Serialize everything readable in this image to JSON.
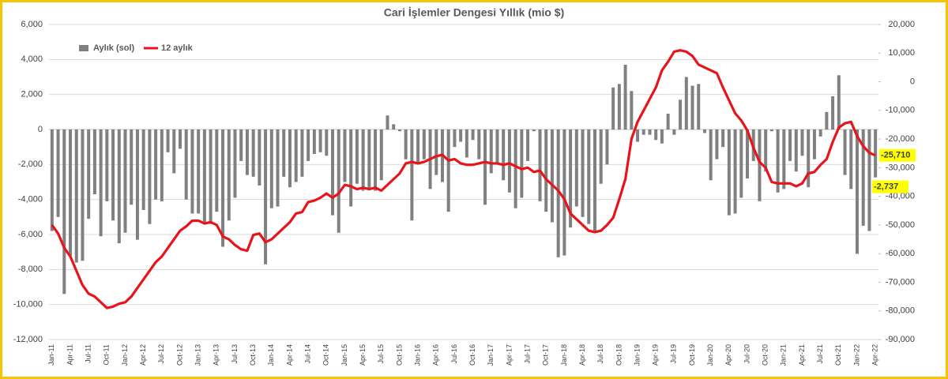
{
  "chart_data": {
    "type": "bar",
    "title": "Cari İşlemler Dengesi Yıllık (mio $)",
    "grid": true,
    "legend": "top-left",
    "categories": [
      "Jan-11",
      null,
      null,
      "Apr-11",
      null,
      null,
      "Jul-11",
      null,
      null,
      "Oct-11",
      null,
      null,
      "Jan-12",
      null,
      null,
      "Apr-12",
      null,
      null,
      "Jul-12",
      null,
      null,
      "Oct-12",
      null,
      null,
      "Jan-13",
      null,
      null,
      "Apr-13",
      null,
      null,
      "Jul-13",
      null,
      null,
      "Oct-13",
      null,
      null,
      "Jan-14",
      null,
      null,
      "Apr-14",
      null,
      null,
      "Jul-14",
      null,
      null,
      "Oct-14",
      null,
      null,
      "Jan-15",
      null,
      null,
      "Apr-15",
      null,
      null,
      "Jul-15",
      null,
      null,
      "Oct-15",
      null,
      null,
      "Jan-16",
      null,
      null,
      "Apr-16",
      null,
      null,
      "Jul-16",
      null,
      null,
      "Oct-16",
      null,
      null,
      "Jan-17",
      null,
      null,
      "Apr-17",
      null,
      null,
      "Jul-17",
      null,
      null,
      "Oct-17",
      null,
      null,
      "Jan-18",
      null,
      null,
      "Apr-18",
      null,
      null,
      "Jul-18",
      null,
      null,
      "Oct-18",
      null,
      null,
      "Jan-19",
      null,
      null,
      "Apr-19",
      null,
      null,
      "Jul-19",
      null,
      null,
      "Oct-19",
      null,
      null,
      "Jan-20",
      null,
      null,
      "Apr-20",
      null,
      null,
      "Jul-20",
      null,
      null,
      "Oct-20",
      null,
      null,
      "Jan-21",
      null,
      null,
      "Apr-21",
      null,
      null,
      "Jul-21",
      null,
      null,
      "Oct-21",
      null,
      null,
      "Jan-22",
      null,
      null,
      "Apr-22"
    ],
    "ylim": [
      -12000,
      6000
    ],
    "yticks": [
      {
        "value": -12000,
        "label": "-12,000"
      },
      {
        "value": -10000,
        "label": "-10,000"
      },
      {
        "value": -8000,
        "label": "-8,000"
      },
      {
        "value": -6000,
        "label": "-6,000"
      },
      {
        "value": -4000,
        "label": "-4,000"
      },
      {
        "value": -2000,
        "label": "-2,000"
      },
      0,
      {
        "value": 2000,
        "label": "2,000"
      },
      {
        "value": 4000,
        "label": "4,000"
      },
      {
        "value": 6000,
        "label": "6,000"
      }
    ],
    "y2lim": [
      -90000,
      20000
    ],
    "y2ticks": [
      {
        "value": -90000,
        "label": "-90,000"
      },
      {
        "value": -80000,
        "label": "-80,000"
      },
      {
        "value": -70000,
        "label": "-70,000"
      },
      {
        "value": -60000,
        "label": "-60,000"
      },
      {
        "value": -50000,
        "label": "-50,000"
      },
      {
        "value": -40000,
        "label": "-40,000"
      },
      {
        "value": -30000,
        "label": "-30,000"
      },
      {
        "value": -20000,
        "label": "-20,000"
      },
      {
        "value": -10000,
        "label": "-10,000"
      },
      0,
      {
        "value": 10000,
        "label": "10,000"
      },
      {
        "value": 20000,
        "label": "20,000"
      }
    ],
    "series": [
      {
        "name": "Aylık (sol)",
        "type": "bar",
        "color": "#808080",
        "values": [
          -5800,
          -5000,
          -9400,
          -7200,
          -7600,
          -7500,
          -5100,
          -3700,
          -6100,
          -4100,
          -5200,
          -6500,
          -5900,
          -4300,
          -6300,
          -4600,
          -5400,
          -4000,
          -4100,
          -1300,
          -2500,
          -1100,
          -4000,
          -4800,
          -4800,
          -5300,
          -5400,
          -4700,
          -6700,
          -5200,
          -3900,
          -1800,
          -2600,
          -2700,
          -3200,
          -7700,
          -4500,
          -4400,
          -2700,
          -3300,
          -3000,
          -2700,
          -1800,
          -1400,
          -1300,
          -1500,
          -4900,
          -5900,
          -3000,
          -4400,
          -3100,
          -3500,
          -3400,
          -3500,
          -2900,
          800,
          300,
          -100,
          -1700,
          -5200,
          -1900,
          -1700,
          -3400,
          -2600,
          -3000,
          -4700,
          -1000,
          -700,
          -1600,
          -600,
          -1700,
          -4300,
          -2500,
          -2000,
          -2900,
          -3600,
          -4500,
          -3900,
          -1800,
          -100,
          -4100,
          -4700,
          -5300,
          -7300,
          -7200,
          -5600,
          -4400,
          -5000,
          -5400,
          -5800,
          -3100,
          -2000,
          2400,
          2600,
          3700,
          2200,
          -700,
          -300,
          -300,
          -600,
          -800,
          900,
          -300,
          1700,
          3000,
          2500,
          2600,
          -200,
          -2900,
          -1700,
          -1000,
          -4900,
          -4800,
          -3900,
          -2800,
          -1800,
          -4100,
          -2400,
          -100,
          -3600,
          -3400,
          -1800,
          -2400,
          -1500,
          -3300,
          -1700,
          -400,
          1000,
          1900,
          3100,
          -2600,
          -3400,
          -7100,
          -5500,
          -5800,
          -2737
        ],
        "value_labels": [
          null,
          null,
          null,
          null,
          null,
          null,
          null,
          null,
          null,
          null,
          null,
          null,
          null,
          null,
          null,
          null,
          null,
          null,
          null,
          null,
          null,
          null,
          null,
          null,
          null,
          null,
          null,
          null,
          null,
          null,
          null,
          null,
          null,
          null,
          null,
          null,
          null,
          null,
          null,
          null,
          null,
          null,
          null,
          null,
          null,
          null,
          null,
          null,
          null,
          null,
          null,
          null,
          null,
          null,
          null,
          null,
          null,
          null,
          null,
          null,
          null,
          null,
          null,
          null,
          null,
          null,
          null,
          null,
          null,
          null,
          null,
          null,
          null,
          null,
          null,
          null,
          null,
          null,
          null,
          null,
          null,
          null,
          null,
          null,
          null,
          null,
          null,
          null,
          null,
          null,
          null,
          null,
          null,
          null,
          null,
          null,
          null,
          null,
          null,
          null,
          null,
          null,
          null,
          null,
          null,
          null,
          null,
          null,
          null,
          null,
          null,
          null,
          null,
          null,
          null,
          null,
          null,
          null,
          null,
          null,
          null,
          null,
          null,
          null,
          null,
          null,
          null,
          null,
          null,
          null,
          null,
          null,
          null,
          null,
          null,
          "-2,737"
        ]
      },
      {
        "name": "12 aylık",
        "type": "line",
        "axis": "y2",
        "color": "#e8141b",
        "values": [
          -50000,
          -53000,
          -58000,
          -61000,
          -66000,
          -71000,
          -74000,
          -75000,
          -77000,
          -79000,
          -78500,
          -77500,
          -77000,
          -75000,
          -72000,
          -69000,
          -66000,
          -63000,
          -61000,
          -58000,
          -55000,
          -52000,
          -50500,
          -48500,
          -48500,
          -49500,
          -49000,
          -50000,
          -54000,
          -55000,
          -57000,
          -58500,
          -59000,
          -53500,
          -53000,
          -56000,
          -55000,
          -53000,
          -51000,
          -49000,
          -46000,
          -45500,
          -42000,
          -41500,
          -40500,
          -39000,
          -40500,
          -39000,
          -36000,
          -36500,
          -37500,
          -37000,
          -37500,
          -37000,
          -38000,
          -36000,
          -34000,
          -32000,
          -28500,
          -28000,
          -28500,
          -28000,
          -27000,
          -26000,
          -25500,
          -27500,
          -27000,
          -28500,
          -29000,
          -29000,
          -28500,
          -28000,
          -28500,
          -28500,
          -29000,
          -28500,
          -29500,
          -30500,
          -30000,
          -31500,
          -31000,
          -34000,
          -36000,
          -38000,
          -41000,
          -46000,
          -48000,
          -50000,
          -52000,
          -52500,
          -52000,
          -50000,
          -47500,
          -41000,
          -34000,
          -20000,
          -14000,
          -10000,
          -6000,
          -2000,
          4000,
          7000,
          10500,
          11000,
          10500,
          9000,
          6000,
          5000,
          4000,
          3000,
          -2000,
          -6500,
          -11000,
          -13500,
          -17000,
          -23000,
          -28000,
          -30000,
          -35000,
          -35500,
          -35500,
          -35500,
          -36500,
          -35500,
          -32000,
          -31500,
          -29000,
          -27000,
          -21000,
          -16000,
          -14500,
          -14000,
          -19000,
          -22500,
          -24800,
          -25710
        ],
        "value_labels": [
          null,
          null,
          null,
          null,
          null,
          null,
          null,
          null,
          null,
          null,
          null,
          null,
          null,
          null,
          null,
          null,
          null,
          null,
          null,
          null,
          null,
          null,
          null,
          null,
          null,
          null,
          null,
          null,
          null,
          null,
          null,
          null,
          null,
          null,
          null,
          null,
          null,
          null,
          null,
          null,
          null,
          null,
          null,
          null,
          null,
          null,
          null,
          null,
          null,
          null,
          null,
          null,
          null,
          null,
          null,
          null,
          null,
          null,
          null,
          null,
          null,
          null,
          null,
          null,
          null,
          null,
          null,
          null,
          null,
          null,
          null,
          null,
          null,
          null,
          null,
          null,
          null,
          null,
          null,
          null,
          null,
          null,
          null,
          null,
          null,
          null,
          null,
          null,
          null,
          null,
          null,
          null,
          null,
          null,
          null,
          null,
          null,
          null,
          null,
          null,
          null,
          null,
          null,
          null,
          null,
          null,
          null,
          null,
          null,
          null,
          null,
          null,
          null,
          null,
          null,
          null,
          null,
          null,
          null,
          null,
          null,
          null,
          null,
          null,
          null,
          null,
          null,
          null,
          null,
          null,
          null,
          null,
          null,
          null,
          null,
          "-25,710"
        ]
      }
    ]
  }
}
